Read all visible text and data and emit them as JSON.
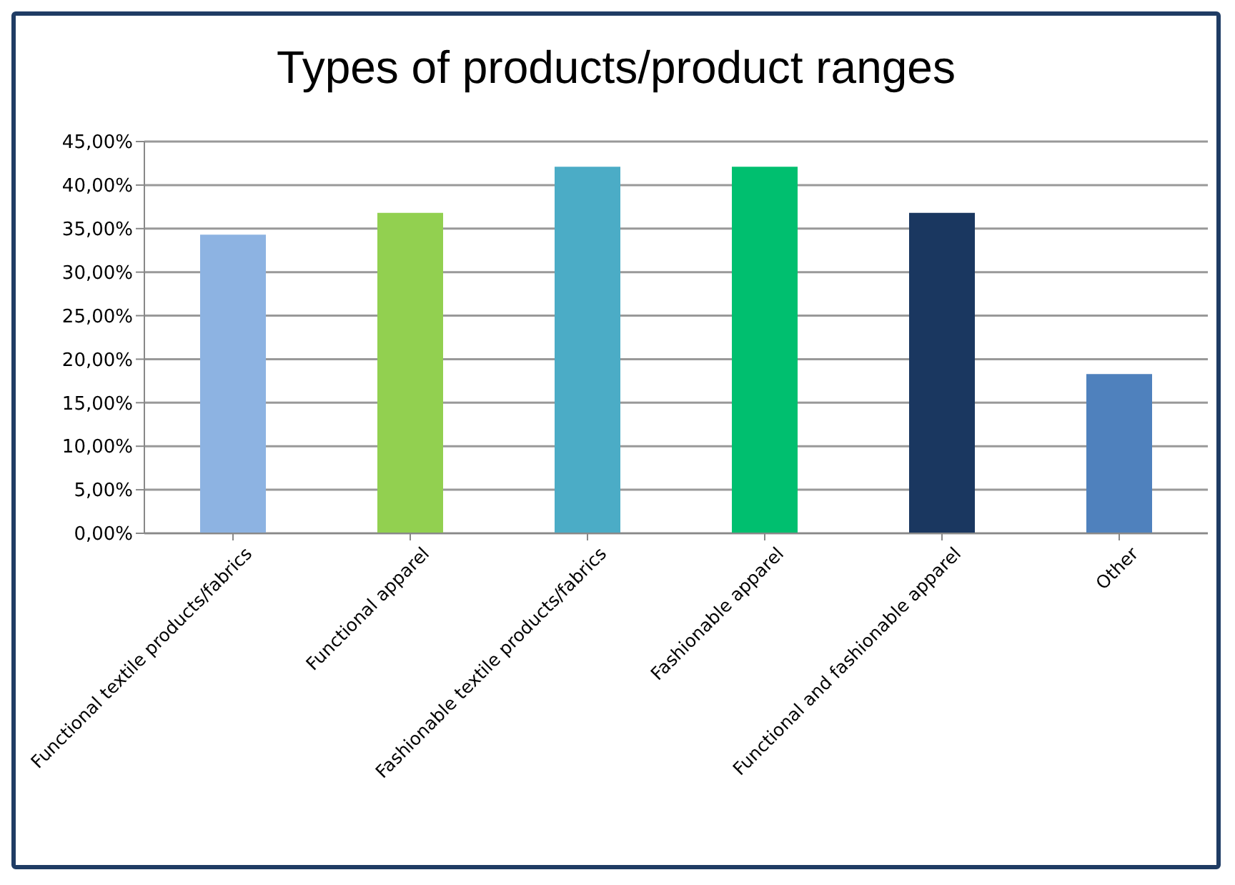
{
  "chart_data": {
    "type": "bar",
    "title": "Types of products/product ranges",
    "categories": [
      "Functional textile products/fabrics",
      "Functional apparel",
      "Fashionable textile products/fabrics",
      "Fashionable apparel",
      "Functional and fashionable apparel",
      "Other"
    ],
    "values": [
      34.3,
      36.8,
      42.1,
      42.1,
      36.8,
      18.3
    ],
    "colors": [
      "#8db3e2",
      "#92d050",
      "#4bacc6",
      "#00bf6f",
      "#1a3760",
      "#4f81bd"
    ],
    "ylim": [
      0,
      45
    ],
    "yticks": [
      {
        "value": 0,
        "label": "0,00%"
      },
      {
        "value": 5,
        "label": "5,00%"
      },
      {
        "value": 10,
        "label": "10,00%"
      },
      {
        "value": 15,
        "label": "15,00%"
      },
      {
        "value": 20,
        "label": "20,00%"
      },
      {
        "value": 25,
        "label": "25,00%"
      },
      {
        "value": 30,
        "label": "30,00%"
      },
      {
        "value": 35,
        "label": "35,00%"
      },
      {
        "value": 40,
        "label": "40,00%"
      },
      {
        "value": 45,
        "label": "45,00%"
      }
    ],
    "grid": "y"
  }
}
